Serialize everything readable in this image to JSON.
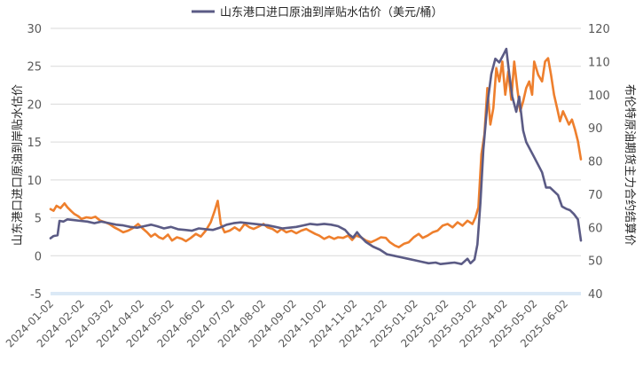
{
  "colors": {
    "premium": "#5b5b85",
    "brent": "#ee7f2d",
    "grid": "#d9d9d9",
    "zero_band": "#dbe9f6"
  },
  "chart_data": {
    "type": "line",
    "legend": [
      {
        "series": "premium",
        "label": "山东港口进口原油到岸贴水估价（美元/桶）",
        "placement": "top-center"
      }
    ],
    "y_left": {
      "label": "山东港口进口原油到岸贴水估价",
      "min": -5,
      "max": 30,
      "ticks": [
        "-5",
        "0",
        "5",
        "10",
        "15",
        "20",
        "25",
        "30"
      ]
    },
    "y_right": {
      "label": "布伦特原油期货主力合约结算价",
      "min": 40,
      "max": 120,
      "ticks": [
        "40",
        "50",
        "60",
        "70",
        "80",
        "90",
        "100",
        "110",
        "120"
      ]
    },
    "x_range": [
      "2024-01-02",
      "2025-06-18"
    ],
    "x_ticks": [
      "2024-01-02",
      "2024-02-02",
      "2024-03-02",
      "2024-04-02",
      "2024-05-02",
      "2024-06-02",
      "2024-07-02",
      "2024-08-02",
      "2024-09-02",
      "2024-10-02",
      "2024-11-02",
      "2024-12-02",
      "2025-01-02",
      "2025-02-02",
      "2025-03-02",
      "2025-04-02",
      "2025-05-02",
      "2025-06-02"
    ],
    "grid": "horizontal",
    "series": [
      {
        "key": "premium",
        "axis": "left",
        "points": [
          [
            "2024-01-02",
            2.3
          ],
          [
            "2024-01-05",
            2.6
          ],
          [
            "2024-01-09",
            2.7
          ],
          [
            "2024-01-11",
            4.6
          ],
          [
            "2024-01-15",
            4.5
          ],
          [
            "2024-01-19",
            4.8
          ],
          [
            "2024-01-25",
            4.7
          ],
          [
            "2024-02-01",
            4.6
          ],
          [
            "2024-02-08",
            4.5
          ],
          [
            "2024-02-15",
            4.3
          ],
          [
            "2024-02-22",
            4.5
          ],
          [
            "2024-03-01",
            4.3
          ],
          [
            "2024-03-08",
            4.1
          ],
          [
            "2024-03-15",
            4.0
          ],
          [
            "2024-03-22",
            3.8
          ],
          [
            "2024-03-29",
            3.7
          ],
          [
            "2024-04-05",
            3.9
          ],
          [
            "2024-04-12",
            4.1
          ],
          [
            "2024-04-18",
            3.9
          ],
          [
            "2024-04-25",
            3.6
          ],
          [
            "2024-05-02",
            3.8
          ],
          [
            "2024-05-09",
            3.5
          ],
          [
            "2024-05-16",
            3.4
          ],
          [
            "2024-05-23",
            3.3
          ],
          [
            "2024-05-30",
            3.6
          ],
          [
            "2024-06-06",
            3.5
          ],
          [
            "2024-06-13",
            3.4
          ],
          [
            "2024-06-20",
            3.7
          ],
          [
            "2024-06-27",
            4.1
          ],
          [
            "2024-07-04",
            4.3
          ],
          [
            "2024-07-11",
            4.4
          ],
          [
            "2024-07-18",
            4.3
          ],
          [
            "2024-07-25",
            4.2
          ],
          [
            "2024-08-01",
            4.1
          ],
          [
            "2024-08-08",
            4.0
          ],
          [
            "2024-08-15",
            3.8
          ],
          [
            "2024-08-22",
            3.6
          ],
          [
            "2024-08-29",
            3.7
          ],
          [
            "2024-09-05",
            3.8
          ],
          [
            "2024-09-12",
            4.0
          ],
          [
            "2024-09-19",
            4.2
          ],
          [
            "2024-09-26",
            4.1
          ],
          [
            "2024-10-03",
            4.2
          ],
          [
            "2024-10-10",
            4.1
          ],
          [
            "2024-10-17",
            3.9
          ],
          [
            "2024-10-24",
            3.4
          ],
          [
            "2024-10-28",
            2.8
          ],
          [
            "2024-11-01",
            2.4
          ],
          [
            "2024-11-05",
            3.1
          ],
          [
            "2024-11-08",
            2.6
          ],
          [
            "2024-11-14",
            1.8
          ],
          [
            "2024-11-21",
            1.2
          ],
          [
            "2024-11-28",
            0.8
          ],
          [
            "2024-12-05",
            0.2
          ],
          [
            "2024-12-12",
            0.0
          ],
          [
            "2024-12-19",
            -0.2
          ],
          [
            "2024-12-26",
            -0.4
          ],
          [
            "2025-01-02",
            -0.6
          ],
          [
            "2025-01-09",
            -0.8
          ],
          [
            "2025-01-16",
            -1.0
          ],
          [
            "2025-01-23",
            -0.9
          ],
          [
            "2025-01-28",
            -1.1
          ],
          [
            "2025-02-04",
            -1.0
          ],
          [
            "2025-02-11",
            -0.9
          ],
          [
            "2025-02-18",
            -1.1
          ],
          [
            "2025-02-24",
            -0.4
          ],
          [
            "2025-02-27",
            -1.0
          ],
          [
            "2025-03-03",
            -0.5
          ],
          [
            "2025-03-06",
            1.5
          ],
          [
            "2025-03-09",
            7.0
          ],
          [
            "2025-03-12",
            14.0
          ],
          [
            "2025-03-16",
            20.0
          ],
          [
            "2025-03-20",
            24.0
          ],
          [
            "2025-03-24",
            26.0
          ],
          [
            "2025-03-28",
            25.5
          ],
          [
            "2025-04-01",
            26.5
          ],
          [
            "2025-04-04",
            27.3
          ],
          [
            "2025-04-07",
            24.0
          ],
          [
            "2025-04-10",
            21.0
          ],
          [
            "2025-04-14",
            19.0
          ],
          [
            "2025-04-17",
            21.0
          ],
          [
            "2025-04-21",
            16.5
          ],
          [
            "2025-04-24",
            15.0
          ],
          [
            "2025-04-28",
            14.0
          ],
          [
            "2025-05-02",
            13.0
          ],
          [
            "2025-05-06",
            12.0
          ],
          [
            "2025-05-10",
            11.0
          ],
          [
            "2025-05-14",
            9.0
          ],
          [
            "2025-05-18",
            9.0
          ],
          [
            "2025-05-22",
            8.5
          ],
          [
            "2025-05-26",
            8.0
          ],
          [
            "2025-05-30",
            6.5
          ],
          [
            "2025-06-03",
            6.2
          ],
          [
            "2025-06-07",
            6.0
          ],
          [
            "2025-06-11",
            5.5
          ],
          [
            "2025-06-15",
            4.8
          ],
          [
            "2025-06-18",
            2.0
          ]
        ]
      },
      {
        "key": "brent",
        "axis": "right",
        "points": [
          [
            "2024-01-02",
            65.5
          ],
          [
            "2024-01-05",
            65.0
          ],
          [
            "2024-01-08",
            66.5
          ],
          [
            "2024-01-12",
            65.8
          ],
          [
            "2024-01-16",
            67.2
          ],
          [
            "2024-01-19",
            66.0
          ],
          [
            "2024-01-23",
            64.8
          ],
          [
            "2024-01-26",
            64.0
          ],
          [
            "2024-01-30",
            63.3
          ],
          [
            "2024-02-02",
            62.5
          ],
          [
            "2024-02-07",
            63.0
          ],
          [
            "2024-02-12",
            62.8
          ],
          [
            "2024-02-16",
            63.2
          ],
          [
            "2024-02-21",
            62.0
          ],
          [
            "2024-02-26",
            61.5
          ],
          [
            "2024-03-01",
            61.0
          ],
          [
            "2024-03-06",
            60.0
          ],
          [
            "2024-03-11",
            59.2
          ],
          [
            "2024-03-15",
            58.5
          ],
          [
            "2024-03-20",
            59.0
          ],
          [
            "2024-03-25",
            59.8
          ],
          [
            "2024-03-30",
            61.0
          ],
          [
            "2024-04-03",
            59.8
          ],
          [
            "2024-04-08",
            58.5
          ],
          [
            "2024-04-12",
            57.2
          ],
          [
            "2024-04-16",
            58.0
          ],
          [
            "2024-04-20",
            57.0
          ],
          [
            "2024-04-24",
            56.5
          ],
          [
            "2024-04-29",
            57.8
          ],
          [
            "2024-05-03",
            56.0
          ],
          [
            "2024-05-08",
            57.0
          ],
          [
            "2024-05-13",
            56.5
          ],
          [
            "2024-05-17",
            55.8
          ],
          [
            "2024-05-22",
            56.8
          ],
          [
            "2024-05-27",
            58.0
          ],
          [
            "2024-06-01",
            57.2
          ],
          [
            "2024-06-06",
            59.0
          ],
          [
            "2024-06-11",
            61.5
          ],
          [
            "2024-06-15",
            65.0
          ],
          [
            "2024-06-18",
            68.0
          ],
          [
            "2024-06-21",
            61.0
          ],
          [
            "2024-06-25",
            58.5
          ],
          [
            "2024-06-30",
            59.0
          ],
          [
            "2024-07-05",
            60.0
          ],
          [
            "2024-07-10",
            59.0
          ],
          [
            "2024-07-15",
            61.0
          ],
          [
            "2024-07-20",
            60.0
          ],
          [
            "2024-07-24",
            59.5
          ],
          [
            "2024-07-29",
            60.2
          ],
          [
            "2024-08-03",
            61.0
          ],
          [
            "2024-08-07",
            60.0
          ],
          [
            "2024-08-12",
            59.5
          ],
          [
            "2024-08-17",
            58.5
          ],
          [
            "2024-08-21",
            59.5
          ],
          [
            "2024-08-26",
            58.5
          ],
          [
            "2024-08-31",
            59.0
          ],
          [
            "2024-09-05",
            58.2
          ],
          [
            "2024-09-10",
            59.0
          ],
          [
            "2024-09-15",
            59.5
          ],
          [
            "2024-09-19",
            58.8
          ],
          [
            "2024-09-24",
            58.0
          ],
          [
            "2024-09-28",
            57.5
          ],
          [
            "2024-10-03",
            56.5
          ],
          [
            "2024-10-08",
            57.2
          ],
          [
            "2024-10-13",
            56.5
          ],
          [
            "2024-10-17",
            57.0
          ],
          [
            "2024-10-22",
            56.8
          ],
          [
            "2024-10-27",
            57.5
          ],
          [
            "2024-10-31",
            56.2
          ],
          [
            "2024-11-04",
            57.5
          ],
          [
            "2024-11-09",
            57.0
          ],
          [
            "2024-11-14",
            56.0
          ],
          [
            "2024-11-19",
            55.5
          ],
          [
            "2024-11-24",
            56.2
          ],
          [
            "2024-11-29",
            57.0
          ],
          [
            "2024-12-04",
            56.8
          ],
          [
            "2024-12-08",
            55.5
          ],
          [
            "2024-12-13",
            54.5
          ],
          [
            "2024-12-17",
            54.0
          ],
          [
            "2024-12-22",
            55.0
          ],
          [
            "2024-12-27",
            55.5
          ],
          [
            "2025-01-01",
            57.0
          ],
          [
            "2025-01-06",
            58.0
          ],
          [
            "2025-01-10",
            56.8
          ],
          [
            "2025-01-15",
            57.5
          ],
          [
            "2025-01-20",
            58.5
          ],
          [
            "2025-01-25",
            59.0
          ],
          [
            "2025-01-30",
            60.5
          ],
          [
            "2025-02-04",
            61.0
          ],
          [
            "2025-02-09",
            60.0
          ],
          [
            "2025-02-14",
            61.5
          ],
          [
            "2025-02-19",
            60.5
          ],
          [
            "2025-02-24",
            62.0
          ],
          [
            "2025-03-01",
            61.0
          ],
          [
            "2025-03-04",
            63.0
          ],
          [
            "2025-03-07",
            66.0
          ],
          [
            "2025-03-10",
            82.0
          ],
          [
            "2025-03-13",
            88.0
          ],
          [
            "2025-03-16",
            102.0
          ],
          [
            "2025-03-19",
            91.0
          ],
          [
            "2025-03-22",
            96.0
          ],
          [
            "2025-03-25",
            108.0
          ],
          [
            "2025-03-28",
            104.0
          ],
          [
            "2025-03-31",
            110.0
          ],
          [
            "2025-04-03",
            100.0
          ],
          [
            "2025-04-06",
            107.0
          ],
          [
            "2025-04-09",
            98.5
          ],
          [
            "2025-04-12",
            110.0
          ],
          [
            "2025-04-15",
            102.0
          ],
          [
            "2025-04-18",
            95.0
          ],
          [
            "2025-04-21",
            98.0
          ],
          [
            "2025-04-24",
            102.0
          ],
          [
            "2025-04-27",
            104.0
          ],
          [
            "2025-04-30",
            100.0
          ],
          [
            "2025-05-02",
            110.0
          ],
          [
            "2025-05-06",
            106.0
          ],
          [
            "2025-05-10",
            104.0
          ],
          [
            "2025-05-13",
            110.0
          ],
          [
            "2025-05-16",
            111.0
          ],
          [
            "2025-05-19",
            106.0
          ],
          [
            "2025-05-22",
            100.0
          ],
          [
            "2025-05-25",
            96.0
          ],
          [
            "2025-05-28",
            92.0
          ],
          [
            "2025-05-31",
            95.0
          ],
          [
            "2025-06-03",
            93.0
          ],
          [
            "2025-06-06",
            91.0
          ],
          [
            "2025-06-09",
            92.5
          ],
          [
            "2025-06-12",
            89.5
          ],
          [
            "2025-06-15",
            86.0
          ],
          [
            "2025-06-18",
            80.5
          ]
        ]
      }
    ]
  }
}
